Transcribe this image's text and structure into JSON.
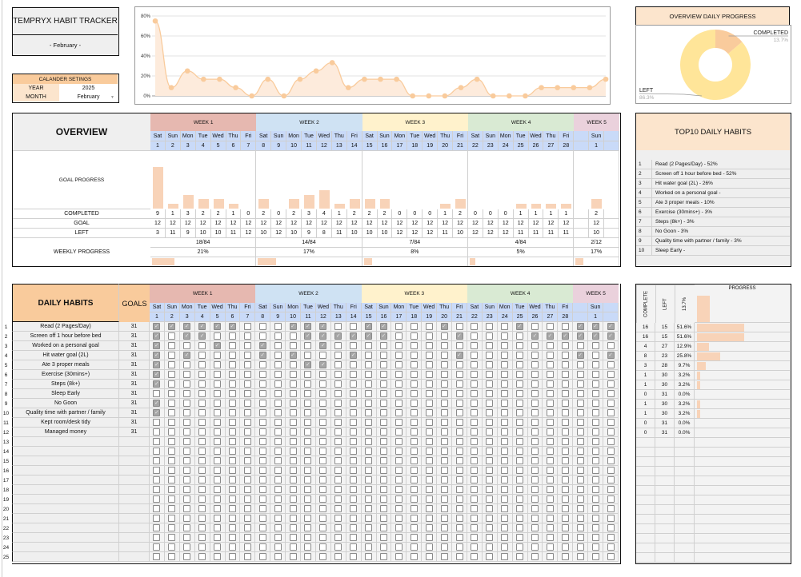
{
  "app": {
    "title": "TEMPRYX HABIT TRACKER",
    "month_banner": "- February -"
  },
  "calendar_settings": {
    "header": "CALANDER SETINGS",
    "year_label": "YEAR",
    "year": "2025",
    "month_label": "MONTH",
    "month": "February"
  },
  "colors": {
    "accent": "#f9cb9c",
    "accent_light": "#fce5cd",
    "bar": "#f8d3b8",
    "day_header": "#c9daf8",
    "checked": "#a6a6a6",
    "week1": "#e6b8b0",
    "week2": "#cfe2f3",
    "week3": "#fff2cc",
    "week4": "#d9ead3",
    "week5": "#ead1dc",
    "donut_left": "#ffe599"
  },
  "weeks": [
    {
      "label": "WEEK 1",
      "color": "#e6b8b0"
    },
    {
      "label": "WEEK 2",
      "color": "#cfe2f3"
    },
    {
      "label": "WEEK 3",
      "color": "#fff2cc"
    },
    {
      "label": "WEEK 4",
      "color": "#d9ead3"
    },
    {
      "label": "WEEK 5",
      "color": "#ead1dc"
    }
  ],
  "columns": [
    {
      "dow": "Sat",
      "date": "1"
    },
    {
      "dow": "Sun",
      "date": "2"
    },
    {
      "dow": "Mon",
      "date": "3"
    },
    {
      "dow": "Tue",
      "date": "4"
    },
    {
      "dow": "Wed",
      "date": "5"
    },
    {
      "dow": "Thu",
      "date": "6"
    },
    {
      "dow": "Fri",
      "date": "7"
    },
    {
      "dow": "Sat",
      "date": "8"
    },
    {
      "dow": "Sun",
      "date": "9"
    },
    {
      "dow": "Mon",
      "date": "10"
    },
    {
      "dow": "Tue",
      "date": "11"
    },
    {
      "dow": "Wed",
      "date": "12"
    },
    {
      "dow": "Thu",
      "date": "13"
    },
    {
      "dow": "Fri",
      "date": "14"
    },
    {
      "dow": "Sat",
      "date": "15"
    },
    {
      "dow": "Sun",
      "date": "16"
    },
    {
      "dow": "Mon",
      "date": "17"
    },
    {
      "dow": "Tue",
      "date": "18"
    },
    {
      "dow": "Wed",
      "date": "19"
    },
    {
      "dow": "Thu",
      "date": "20"
    },
    {
      "dow": "Fri",
      "date": "21"
    },
    {
      "dow": "Sat",
      "date": "22"
    },
    {
      "dow": "Sun",
      "date": "23"
    },
    {
      "dow": "Mon",
      "date": "24"
    },
    {
      "dow": "Tue",
      "date": "25"
    },
    {
      "dow": "Wed",
      "date": "26"
    },
    {
      "dow": "Thu",
      "date": "27"
    },
    {
      "dow": "Fri",
      "date": "28"
    },
    {
      "dow": "",
      "date": ""
    },
    {
      "dow": "Sun",
      "date": "1"
    },
    {
      "dow": "",
      "date": ""
    }
  ],
  "overview": {
    "title": "OVERVIEW",
    "labels": {
      "goal_progress": "GOAL PROGRESS",
      "completed": "COMPLETED",
      "goal": "GOAL",
      "left": "LEFT",
      "weekly_progress": "WEEKLY PROGRESS"
    },
    "completed": [
      9,
      1,
      3,
      2,
      2,
      1,
      0,
      2,
      0,
      2,
      3,
      4,
      1,
      2,
      2,
      2,
      0,
      0,
      0,
      1,
      2,
      0,
      0,
      0,
      1,
      1,
      1,
      1,
      null,
      2,
      null
    ],
    "goal": [
      12,
      12,
      12,
      12,
      12,
      12,
      12,
      12,
      12,
      12,
      12,
      12,
      12,
      12,
      12,
      12,
      12,
      12,
      12,
      12,
      12,
      12,
      12,
      12,
      12,
      12,
      12,
      12,
      null,
      12,
      null
    ],
    "left": [
      3,
      11,
      9,
      10,
      10,
      11,
      12,
      10,
      12,
      10,
      9,
      8,
      11,
      10,
      10,
      10,
      12,
      12,
      12,
      11,
      10,
      12,
      12,
      12,
      11,
      11,
      11,
      11,
      null,
      10,
      null
    ],
    "weekly": [
      {
        "fraction": "18/84",
        "percent": "21%",
        "value": 21
      },
      {
        "fraction": "14/84",
        "percent": "17%",
        "value": 17
      },
      {
        "fraction": "7/84",
        "percent": "8%",
        "value": 8
      },
      {
        "fraction": "4/84",
        "percent": "5%",
        "value": 5
      },
      {
        "fraction": "2/12",
        "percent": "17%",
        "value": 17
      }
    ]
  },
  "top10": {
    "title": "TOP10 DAILY HABITS",
    "items": [
      {
        "rank": "1",
        "text": "Read (2 Pages/Day) - 52%"
      },
      {
        "rank": "2",
        "text": "Screen off 1 hour before bed - 52%"
      },
      {
        "rank": "3",
        "text": "Hit water goal (2L) - 26%"
      },
      {
        "rank": "4",
        "text": "Worked on a personal goal -"
      },
      {
        "rank": "5",
        "text": "Ate 3 proper meals - 10%"
      },
      {
        "rank": "6",
        "text": "Exercise (30mins+) - 3%"
      },
      {
        "rank": "7",
        "text": "Steps (8k+) - 3%"
      },
      {
        "rank": "8",
        "text": "No Goon - 3%"
      },
      {
        "rank": "9",
        "text": "Quality time with partner / family - 3%"
      },
      {
        "rank": "10",
        "text": "Sleep Early -"
      }
    ]
  },
  "daily_habits": {
    "title": "DAILY HABITS",
    "goals_label": "GOALS",
    "row_count": 25,
    "habits": [
      {
        "name": "Read (2 Pages/Day)",
        "goal": "31",
        "checks": "1111110001110011000100001000111",
        "complete": "16",
        "left": "15",
        "percent": "51.6%",
        "value": 51.6
      },
      {
        "name": "Screen off 1 hour before bed",
        "goal": "31",
        "checks": "1011000000111111000010000111111",
        "complete": "16",
        "left": "15",
        "percent": "51.6%",
        "value": 51.6
      },
      {
        "name": "Worked on a personal goal",
        "goal": "31",
        "checks": "1000100100010000000000000000000",
        "complete": "4",
        "left": "27",
        "percent": "12.9%",
        "value": 12.9
      },
      {
        "name": "Hit water goal (2L)",
        "goal": "31",
        "checks": "1010000101000100000010000000101",
        "complete": "8",
        "left": "23",
        "percent": "25.8%",
        "value": 25.8
      },
      {
        "name": "Ate 3 proper meals",
        "goal": "31",
        "checks": "1000000000110000000000000000000",
        "complete": "3",
        "left": "28",
        "percent": "9.7%",
        "value": 9.7
      },
      {
        "name": "Exercise (30mins+)",
        "goal": "31",
        "checks": "1000000000000000000000000000000",
        "complete": "1",
        "left": "30",
        "percent": "3.2%",
        "value": 3.2
      },
      {
        "name": "Steps (8k+)",
        "goal": "31",
        "checks": "1000000000000000000000000000000",
        "complete": "1",
        "left": "30",
        "percent": "3.2%",
        "value": 3.2
      },
      {
        "name": "Sleep Early",
        "goal": "31",
        "checks": "0000000000000000000000000000000",
        "complete": "0",
        "left": "31",
        "percent": "0.0%",
        "value": 0
      },
      {
        "name": "No Goon",
        "goal": "31",
        "checks": "1000000000000000000000000000000",
        "complete": "1",
        "left": "30",
        "percent": "3.2%",
        "value": 3.2
      },
      {
        "name": "Quality time with partner / family",
        "goal": "31",
        "checks": "1000000000000000000000000000000",
        "complete": "1",
        "left": "30",
        "percent": "3.2%",
        "value": 3.2
      },
      {
        "name": "Kept room/desk tidy",
        "goal": "31",
        "checks": "0000000000000000000000000000000",
        "complete": "0",
        "left": "31",
        "percent": "0.0%",
        "value": 0
      },
      {
        "name": "Managed money",
        "goal": "31",
        "checks": "0000000000000000000000000000000",
        "complete": "0",
        "left": "31",
        "percent": "0.0%",
        "value": 0
      }
    ]
  },
  "progress_panel": {
    "complete_label": "COMPLETE",
    "left_label": "LEFT",
    "overall_percent": "13.7%",
    "overall_value": 13.7,
    "progress_label": "PROGRESS"
  },
  "chart_data": [
    {
      "type": "area",
      "values": [
        75,
        8.3,
        25,
        16.7,
        16.7,
        8.3,
        0,
        16.7,
        0,
        16.7,
        25,
        33.3,
        8.3,
        16.7,
        16.7,
        16.7,
        0,
        0,
        0,
        8.3,
        16.7,
        0,
        0,
        0,
        8.3,
        8.3,
        8.3,
        8.3,
        16.7
      ],
      "ylim": [
        0,
        80
      ],
      "yticks": [
        "0%",
        "20%",
        "40%",
        "60%",
        "80%"
      ],
      "grid": true,
      "color": "#f9cb9c"
    },
    {
      "type": "pie",
      "title": "OVERVIEW DAILY PROGRESS",
      "donut": true,
      "slices": [
        {
          "name": "COMPLETED",
          "label": "13.7%",
          "value": 13.7,
          "color": "#f9cb9c"
        },
        {
          "name": "LEFT",
          "label": "86.3%",
          "value": 86.3,
          "color": "#ffe599"
        }
      ]
    }
  ]
}
